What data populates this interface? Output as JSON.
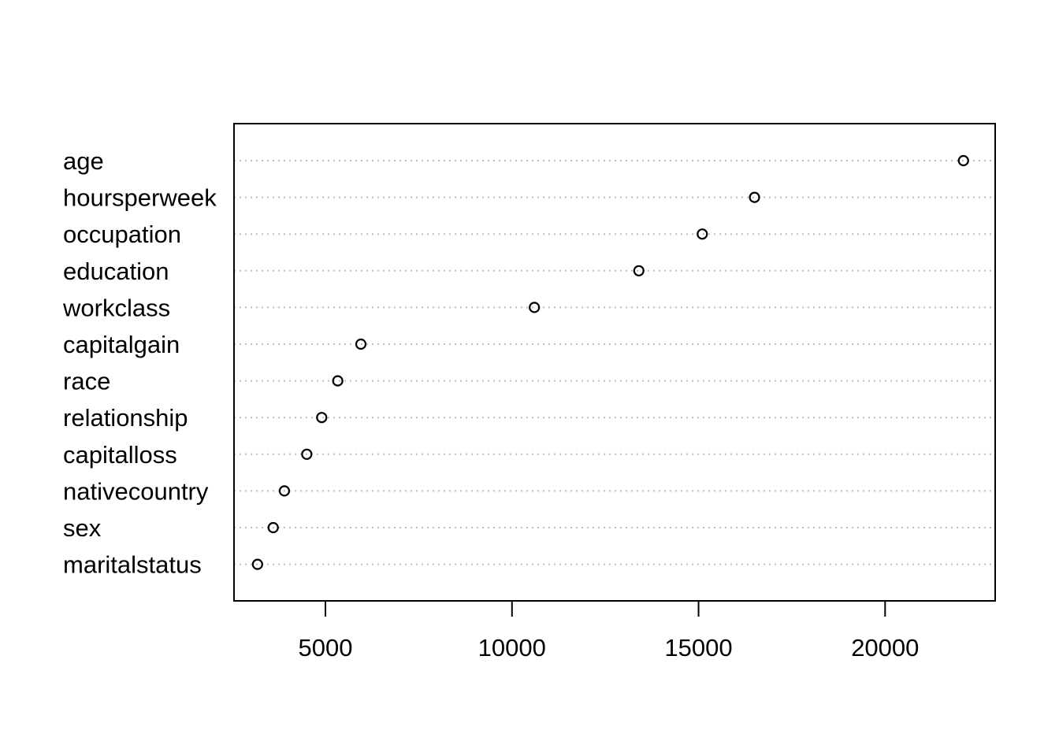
{
  "chart_data": {
    "type": "scatter",
    "title": "",
    "xlabel": "",
    "ylabel": "",
    "categories": [
      "age",
      "hoursperweek",
      "occupation",
      "education",
      "workclass",
      "capitalgain",
      "race",
      "relationship",
      "capitalloss",
      "nativecountry",
      "sex",
      "maritalstatus"
    ],
    "values": [
      22100,
      16500,
      15100,
      13400,
      10600,
      5950,
      5330,
      4900,
      4500,
      3900,
      3600,
      3180
    ],
    "xlim": [
      2550,
      22950
    ],
    "xticks": [
      5000,
      10000,
      15000,
      20000
    ],
    "xtick_labels": [
      "5000",
      "10000",
      "15000",
      "20000"
    ],
    "grid": "dotted horizontal guide lines per category",
    "marker": "open circle",
    "colors": {
      "ink": "#000000",
      "grid": "#bebebe",
      "background": "#ffffff"
    }
  }
}
